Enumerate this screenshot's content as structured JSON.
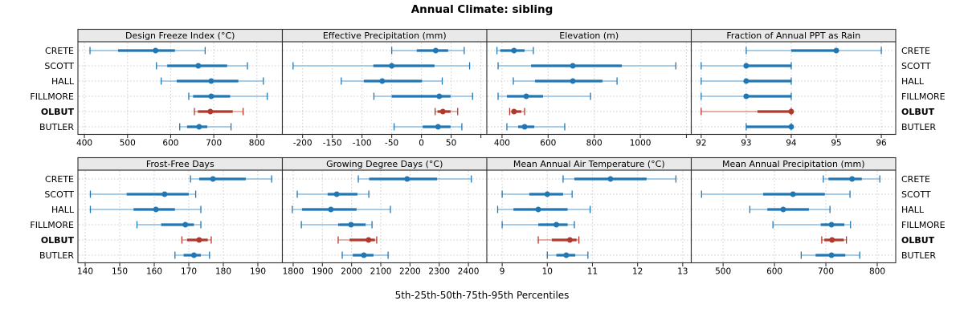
{
  "page": {
    "title": "Annual Climate: sibling",
    "caption": "5th-25th-50th-75th-95th Percentiles"
  },
  "chart_data": {
    "type": "dotplot",
    "title": "Annual Climate: sibling",
    "caption": "5th-25th-50th-75th-95th Percentiles",
    "statistic_labels": [
      "5th",
      "25th",
      "50th",
      "75th",
      "95th"
    ],
    "categories": [
      "CRETE",
      "SCOTT",
      "HALL",
      "FILLMORE",
      "OLBUT",
      "BUTLER"
    ],
    "highlight_category": "OLBUT",
    "legend_position": "none",
    "grid": "dashed",
    "colors": {
      "blue": "#2077b4",
      "blue_light": "#8cbcdd",
      "red": "#b0392e",
      "red_light": "#dc948c",
      "header_bg": "#e9e9e9",
      "panel_border": "#2e2e2e",
      "gridline": "#cccccc",
      "text": "#000000"
    },
    "panels": [
      {
        "title": "Design Freeze Index (°C)",
        "xlim": [
          385,
          859
        ],
        "ticks": [
          {
            "v": 400,
            "label": "400"
          },
          {
            "v": 500,
            "label": "500"
          },
          {
            "v": 600,
            "label": "600"
          },
          {
            "v": 700,
            "label": "700"
          },
          {
            "v": 800,
            "label": "800"
          }
        ],
        "values": [
          [
            413,
            478,
            565,
            610,
            680
          ],
          [
            567,
            592,
            664,
            731,
            778
          ],
          [
            578,
            614,
            694,
            757,
            815
          ],
          [
            642,
            652,
            694,
            738,
            824
          ],
          [
            655,
            663,
            692,
            744,
            768
          ],
          [
            621,
            638,
            666,
            685,
            740
          ]
        ]
      },
      {
        "title": "Effective Precipitation (mm)",
        "xlim": [
          -234,
          110
        ],
        "ticks": [
          {
            "v": -200,
            "label": "-200"
          },
          {
            "v": -150,
            "label": "-150"
          },
          {
            "v": -100,
            "label": "-100"
          },
          {
            "v": -50,
            "label": "-50"
          },
          {
            "v": 0,
            "label": "0"
          },
          {
            "v": 50,
            "label": "50"
          },
          {
            "v": 100,
            "label": ""
          }
        ],
        "values": [
          [
            -50,
            -8,
            24,
            45,
            72
          ],
          [
            -216,
            -81,
            -50,
            22,
            81
          ],
          [
            -135,
            -97,
            -66,
            1,
            35
          ],
          [
            -80,
            -50,
            30,
            49,
            86
          ],
          [
            23,
            27,
            36,
            49,
            61
          ],
          [
            -46,
            2,
            28,
            49,
            68
          ]
        ]
      },
      {
        "title": "Elevation (m)",
        "xlim": [
          334,
          1221
        ],
        "ticks": [
          {
            "v": 400,
            "label": "400"
          },
          {
            "v": 600,
            "label": "600"
          },
          {
            "v": 800,
            "label": "800"
          },
          {
            "v": 1000,
            "label": "1000"
          },
          {
            "v": 1200,
            "label": ""
          }
        ],
        "values": [
          [
            378,
            392,
            452,
            498,
            536
          ],
          [
            383,
            526,
            707,
            920,
            1154
          ],
          [
            449,
            543,
            707,
            836,
            899
          ],
          [
            383,
            421,
            505,
            578,
            784
          ],
          [
            433,
            440,
            452,
            484,
            498
          ],
          [
            421,
            470,
            498,
            540,
            672
          ]
        ]
      },
      {
        "title": "Fraction of Annual PPT as Rain",
        "xlim": [
          91.78,
          96.32
        ],
        "ticks": [
          {
            "v": 92,
            "label": "92"
          },
          {
            "v": 93,
            "label": "93"
          },
          {
            "v": 94,
            "label": "94"
          },
          {
            "v": 95,
            "label": "95"
          },
          {
            "v": 96,
            "label": "96"
          }
        ],
        "values": [
          [
            93,
            94,
            95,
            95,
            96
          ],
          [
            92,
            93,
            93,
            94,
            94
          ],
          [
            92,
            93,
            93,
            94,
            94
          ],
          [
            92,
            93,
            93,
            94,
            94
          ],
          [
            92,
            93.25,
            94,
            94,
            94
          ],
          [
            93,
            93,
            94,
            94,
            94
          ]
        ]
      },
      {
        "title": "Frost-Free Days",
        "xlim": [
          137.9,
          197.1
        ],
        "ticks": [
          {
            "v": 140,
            "label": "140"
          },
          {
            "v": 150,
            "label": "150"
          },
          {
            "v": 160,
            "label": "160"
          },
          {
            "v": 170,
            "label": "170"
          },
          {
            "v": 180,
            "label": "180"
          },
          {
            "v": 190,
            "label": "190"
          }
        ],
        "values": [
          [
            170.5,
            173,
            177,
            186.5,
            194
          ],
          [
            141.5,
            152,
            163,
            170,
            172
          ],
          [
            141.5,
            154,
            160.5,
            166,
            173.5
          ],
          [
            155,
            162,
            169,
            171.5,
            173.5
          ],
          [
            168,
            169.5,
            173,
            175.5,
            176.5
          ],
          [
            166,
            168.5,
            171.5,
            173.5,
            176
          ]
        ]
      },
      {
        "title": "Growing Degree Days (°C)",
        "xlim": [
          1763,
          2463
        ],
        "ticks": [
          {
            "v": 1800,
            "label": "1800"
          },
          {
            "v": 1900,
            "label": "1900"
          },
          {
            "v": 2000,
            "label": "2000"
          },
          {
            "v": 2100,
            "label": "2100"
          },
          {
            "v": 2200,
            "label": "2200"
          },
          {
            "v": 2300,
            "label": "2300"
          },
          {
            "v": 2400,
            "label": "2400"
          }
        ],
        "values": [
          [
            2023,
            2060,
            2190,
            2293,
            2410
          ],
          [
            1814,
            1918,
            1949,
            2020,
            2059
          ],
          [
            1797,
            1830,
            1929,
            2017,
            2133
          ],
          [
            1828,
            1954,
            1998,
            2048,
            2070
          ],
          [
            1954,
            1993,
            2058,
            2080,
            2086
          ],
          [
            1968,
            2004,
            2042,
            2075,
            2125
          ]
        ]
      },
      {
        "title": "Mean Annual Air Temperature (°C)",
        "xlim": [
          8.66,
          13.19
        ],
        "ticks": [
          {
            "v": 9,
            "label": "9"
          },
          {
            "v": 10,
            "label": "10"
          },
          {
            "v": 11,
            "label": "11"
          },
          {
            "v": 12,
            "label": "12"
          },
          {
            "v": 13,
            "label": "13"
          }
        ],
        "values": [
          [
            10.35,
            10.6,
            11.4,
            12.2,
            12.85
          ],
          [
            9.0,
            9.6,
            10.0,
            10.35,
            10.55
          ],
          [
            8.9,
            9.25,
            9.8,
            10.45,
            10.95
          ],
          [
            9.0,
            9.8,
            10.2,
            10.45,
            10.6
          ],
          [
            9.8,
            10.1,
            10.5,
            10.65,
            10.7
          ],
          [
            10.0,
            10.2,
            10.42,
            10.62,
            10.9
          ]
        ]
      },
      {
        "title": "Mean Annual Precipitation (mm)",
        "xlim": [
          438,
          836
        ],
        "ticks": [
          {
            "v": 500,
            "label": "500"
          },
          {
            "v": 600,
            "label": "600"
          },
          {
            "v": 700,
            "label": "700"
          },
          {
            "v": 800,
            "label": "800"
          }
        ],
        "values": [
          [
            695,
            705,
            751,
            770,
            805
          ],
          [
            458,
            578,
            636,
            698,
            747
          ],
          [
            552,
            586,
            617,
            667,
            708
          ],
          [
            597,
            690,
            711,
            736,
            748
          ],
          [
            692,
            697,
            712,
            735,
            740
          ],
          [
            652,
            680,
            711,
            738,
            766
          ]
        ]
      }
    ]
  }
}
